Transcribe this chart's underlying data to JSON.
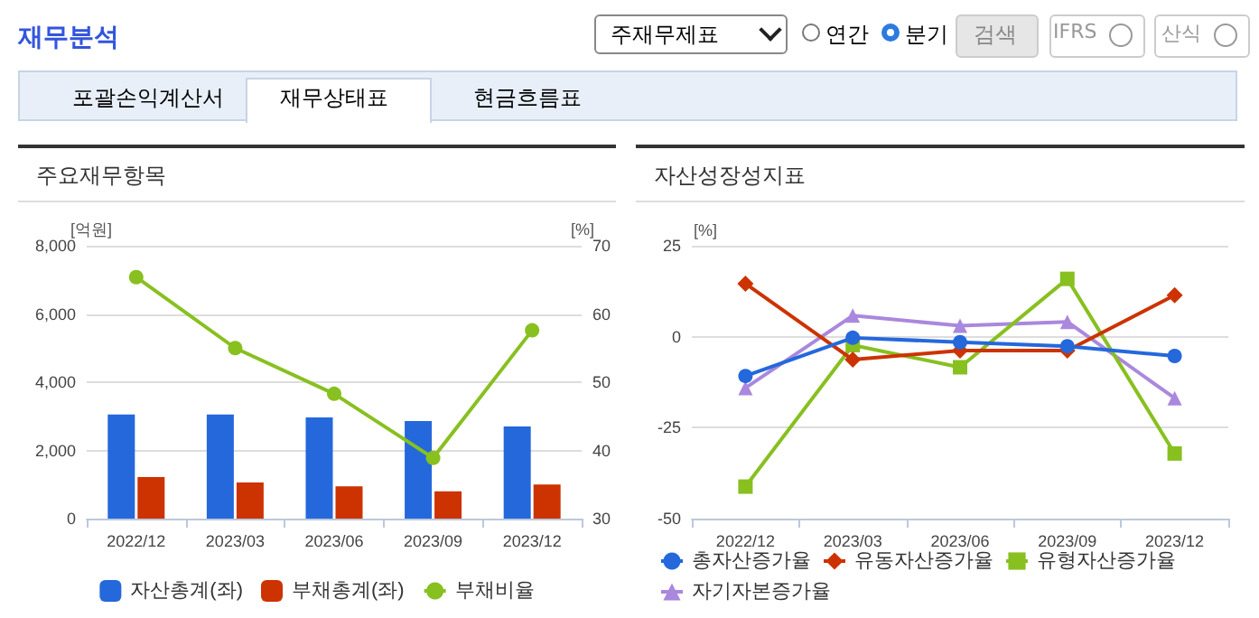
{
  "chart_data": [
    {
      "type": "bar",
      "title": "주요재무항목",
      "ylabel": "[억원]",
      "y2label": "[%]",
      "annotations": [
        "재무분석",
        "주재무제표",
        "연간",
        "분기",
        "검색",
        "IFRS",
        "산식",
        "포괄손익계산서",
        "재무상태표",
        "현금흐름표"
      ],
      "categories": [
        "2022/12",
        "2023/03",
        "2023/06",
        "2023/09",
        "2023/12"
      ],
      "series": [
        {
          "name": "자산총계(좌)",
          "color": "#2468dc",
          "values": [
            3050,
            3050,
            2970,
            2860,
            2700
          ]
        },
        {
          "name": "부채총계(좌)",
          "color": "#cc3300",
          "values": [
            1220,
            1060,
            950,
            800,
            1000
          ]
        },
        {
          "name": "부채비율",
          "type": "line",
          "axis": "y2",
          "marker": "circle",
          "color": "#88c020",
          "values": [
            65.4,
            55.0,
            48.3,
            38.9,
            57.6
          ]
        }
      ],
      "ylim": [
        0,
        8000
      ],
      "yticks": [
        {
          "value": 0,
          "label": "0"
        },
        {
          "value": 2000,
          "label": "2,000"
        },
        {
          "value": 4000,
          "label": "4,000"
        },
        {
          "value": 6000,
          "label": "6,000"
        },
        {
          "value": 8000,
          "label": "8,000"
        }
      ],
      "y2lim": [
        30,
        70
      ],
      "y2ticks": [
        30,
        40,
        50,
        60,
        70
      ],
      "grid": "y",
      "legend": "bottom"
    },
    {
      "type": "line",
      "title": "자산성장성지표",
      "ylabel": "[%]",
      "categories": [
        "2022/12",
        "2023/03",
        "2023/06",
        "2023/09",
        "2023/12"
      ],
      "series": [
        {
          "name": "총자산증가율",
          "color": "#2468dc",
          "marker": "circle",
          "values": [
            -10.8,
            -0.3,
            -1.5,
            -2.6,
            -5.3
          ]
        },
        {
          "name": "유동자산증가율",
          "color": "#cc3300",
          "marker": "diamond",
          "values": [
            14.6,
            -6.3,
            -3.8,
            -3.8,
            11.4
          ]
        },
        {
          "name": "유형자산증가율",
          "color": "#88c020",
          "marker": "square",
          "values": [
            -41.2,
            -2.3,
            -8.4,
            15.9,
            -32.1
          ]
        },
        {
          "name": "자기자본증가율",
          "color": "#aa88dd",
          "marker": "triangle",
          "values": [
            -14.1,
            5.8,
            3.0,
            4.1,
            -16.9
          ]
        }
      ],
      "ylim": [
        -50,
        25
      ],
      "yticks": [
        -50,
        -25,
        0,
        25
      ],
      "grid": "y",
      "legend": "bottom"
    }
  ]
}
